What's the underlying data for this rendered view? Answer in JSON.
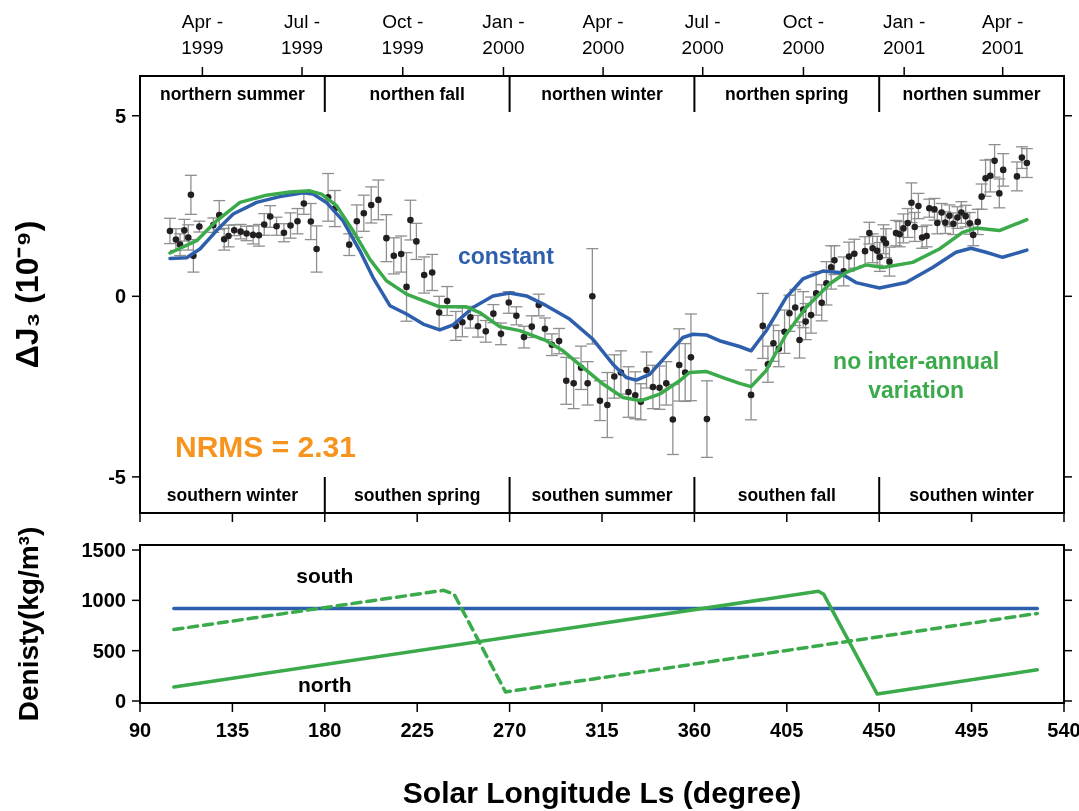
{
  "chart_data": [
    {
      "type": "line",
      "ylabel": "ΔJ₃ (10⁻⁹)",
      "xlim": [
        90,
        540
      ],
      "xticks": [
        {
          "value": 90,
          "label": null
        },
        {
          "value": 135,
          "label": null
        },
        {
          "value": 180,
          "label": null
        },
        {
          "value": 225,
          "label": null
        },
        {
          "value": 270,
          "label": null
        },
        {
          "value": 315,
          "label": null
        },
        {
          "value": 360,
          "label": null
        },
        {
          "value": 405,
          "label": null
        },
        {
          "value": 450,
          "label": null
        },
        {
          "value": 495,
          "label": null
        },
        {
          "value": 540,
          "label": null
        }
      ],
      "ylim": [
        -6,
        6.1
      ],
      "yticks": [
        -5,
        0,
        5
      ],
      "tick_labels": "y",
      "x2lim": [
        "1999-02-03",
        "2001-05-27"
      ],
      "x2ticks": [
        {
          "value": "1999-04-01",
          "label": "Apr -\n1999"
        },
        {
          "value": "1999-07-01",
          "label": "Jul -\n1999"
        },
        {
          "value": "1999-10-01",
          "label": "Oct -\n1999"
        },
        {
          "value": "2000-01-01",
          "label": "Jan -\n2000"
        },
        {
          "value": "2000-04-01",
          "label": "Apr -\n2000"
        },
        {
          "value": "2000-07-01",
          "label": "Jul -\n2000"
        },
        {
          "value": "2000-10-01",
          "label": "Oct -\n2000"
        },
        {
          "value": "2001-01-01",
          "label": "Jan -\n2001"
        },
        {
          "value": "2001-04-01",
          "label": "Apr -\n2001"
        }
      ],
      "grid": false,
      "legend": false,
      "annotations": [
        "NRMS = 2.31",
        "northern summer",
        "northen fall",
        "northen winter",
        "northen spring",
        "northen summer",
        "southern winter",
        "southen spring",
        "southen summer",
        "southen fall",
        "southen winter"
      ],
      "series": [
        {
          "type": "scatter",
          "color": "#231f20",
          "marker": "circle",
          "x": [
            104.6,
            107.5,
            109.5,
            111.6,
            113.5,
            114.8,
            116,
            118.9,
            125.7,
            128.6,
            131,
            133.1,
            135.9,
            139,
            141.9,
            145.1,
            147.9,
            150.5,
            153.4,
            156.5,
            160.1,
            163.3,
            166.7,
            169.8,
            173.2,
            176,
            181.6,
            184.9,
            191.9,
            195.6,
            199,
            202.6,
            206.1,
            210,
            213.6,
            217.2,
            219.8,
            221.7,
            224.6,
            228.4,
            232.3,
            235.7,
            239.6,
            243.8,
            247,
            250.9,
            254.6,
            258.4,
            262.1,
            265.8,
            269.6,
            273.3,
            277,
            280.8,
            284.2,
            287.2,
            290.6,
            294.1,
            297.6,
            301.2,
            304.8,
            308,
            310.3,
            314,
            317.6,
            321,
            324.2,
            327.9,
            331.2,
            333.9,
            336.7,
            339.8,
            343,
            346.3,
            349.5,
            352.6,
            355.5,
            358.3,
            366.1,
            387.6,
            393.3,
            395.8,
            398.5,
            401.1,
            403.9,
            406.3,
            409.1,
            411.2,
            413,
            414.2,
            416.8,
            419.3,
            422,
            424.3,
            426.6,
            428.2,
            432.7,
            435.3,
            437.9,
            443.1,
            445.2,
            446.8,
            449,
            450.3,
            452.1,
            453.3,
            455,
            458.2,
            460,
            461.8,
            463.9,
            465.7,
            467.3,
            469.1,
            470.9,
            473.1,
            474.4,
            476.9,
            478.3,
            480.4,
            482.2,
            484.2,
            486.1,
            488.1,
            490,
            492.1,
            494.1,
            495.8,
            498,
            499.9,
            501.8,
            504.1,
            506.2,
            508.5,
            510.4,
            517.1,
            519.5,
            521.9
          ],
          "values": [
            1.81,
            1.57,
            1.43,
            1.83,
            1.63,
            2.81,
            1.12,
            1.93,
            1.97,
            2.25,
            1.58,
            1.67,
            1.83,
            1.79,
            1.74,
            1.7,
            1.69,
            1.99,
            2.21,
            1.94,
            1.76,
            1.96,
            2.08,
            2.57,
            2.07,
            1.31,
            2.74,
            2.43,
            1.43,
            2.08,
            2.3,
            2.53,
            2.67,
            1.61,
            1.12,
            1.17,
            0.26,
            2.11,
            1.52,
            0.59,
            0.66,
            -0.45,
            -0.13,
            -0.82,
            -0.72,
            -0.58,
            -0.83,
            -0.97,
            -0.48,
            -1.04,
            -0.17,
            -0.54,
            -1.13,
            -0.84,
            -0.24,
            -0.9,
            -1.34,
            -1.24,
            -2.34,
            -2.41,
            -1.98,
            -2.41,
            0,
            -2.89,
            -3.01,
            -2.22,
            -2.11,
            -2.65,
            -2.74,
            -2.92,
            -2.04,
            -2.51,
            -2.53,
            -2.41,
            -3.41,
            -1.9,
            -2.11,
            -1.69,
            -3.4,
            -2.73,
            -0.82,
            -1.88,
            -1.3,
            -1.45,
            -0.98,
            -0.47,
            -0.31,
            -1.21,
            -0.37,
            -0.7,
            -0.52,
            0.08,
            -0.18,
            0.36,
            0.8,
            1,
            0.69,
            1.1,
            1.18,
            1.25,
            1.75,
            1.33,
            1.26,
            1.09,
            1.58,
            1.47,
            0.96,
            1.75,
            1.72,
            1.88,
            2.03,
            2.59,
            1.92,
            2.5,
            1.63,
            1.67,
            2.44,
            2.41,
            2.03,
            2.32,
            2.04,
            2.23,
            2.01,
            2.18,
            2.32,
            2.22,
            2.02,
            1.7,
            2.06,
            2.76,
            3.27,
            3.34,
            3.75,
            2.85,
            3.5,
            3.32,
            3.84,
            3.69
          ],
          "errors": [
            0.35,
            0.3,
            0.3,
            0.3,
            0.35,
            0.54,
            0.45,
            0.15,
            0.2,
            0.4,
            0.3,
            0.3,
            0.15,
            0.2,
            0.2,
            0.25,
            0.3,
            0.3,
            0.3,
            0.25,
            0.25,
            0.35,
            0.35,
            0.3,
            0.5,
            0.64,
            0.66,
            0.5,
            0.3,
            0.45,
            0.5,
            0.5,
            0.55,
            0.65,
            0.5,
            0.5,
            0.95,
            0.55,
            0.5,
            0.5,
            0.5,
            0.45,
            0.4,
            0.4,
            0.4,
            0.3,
            0.3,
            0.3,
            0.25,
            0.3,
            0.3,
            0.25,
            0.3,
            0.3,
            0.3,
            0.3,
            0.3,
            0.35,
            0.65,
            0.7,
            0.6,
            0.6,
            1.32,
            0.55,
            0.9,
            0.6,
            0.6,
            0.7,
            0.65,
            0.5,
            0.5,
            0.6,
            0.6,
            0.6,
            0.97,
            1.0,
            0.8,
            1.2,
            1.06,
            0.69,
            0.9,
            0.5,
            0.5,
            0.5,
            0.6,
            0.5,
            0.5,
            0.5,
            0.5,
            0.5,
            0.5,
            0.6,
            0.5,
            0.6,
            0.6,
            0.4,
            0.4,
            0.4,
            0.4,
            0.4,
            0.3,
            0.4,
            0.4,
            0.4,
            0.4,
            0.4,
            0.4,
            0.35,
            0.35,
            0.4,
            0.4,
            0.55,
            0.4,
            0.35,
            0.3,
            0.3,
            0.25,
            0.3,
            0.3,
            0.25,
            0.3,
            0.3,
            0.3,
            0.3,
            0.3,
            0.3,
            0.3,
            0.3,
            0.35,
            0.35,
            0.5,
            0.45,
            0.45,
            0.4,
            0.45,
            0.4,
            0.3,
            0.4
          ]
        },
        {
          "name": "constant",
          "color": "#2e5fac",
          "line_style": "solid",
          "x": [
            104.6,
            112.7,
            119.2,
            127.3,
            135.4,
            146.8,
            158.1,
            169.5,
            174.3,
            180.8,
            188.9,
            197.1,
            203.5,
            211.7,
            219.8,
            227.9,
            236,
            242.5,
            252.2,
            261.9,
            270,
            278.2,
            287.9,
            299.2,
            310.6,
            320.3,
            326.8,
            331.7,
            338.2,
            346.3,
            354.4,
            359.3,
            365.7,
            372.2,
            382,
            387.6,
            394.9,
            404.7,
            412.8,
            422.5,
            430.6,
            438.7,
            450.1,
            463.1,
            476,
            487.4,
            494.7,
            502,
            510.1,
            521.9
          ],
          "values": [
            1.05,
            1.07,
            1.31,
            1.82,
            2.28,
            2.6,
            2.76,
            2.87,
            2.83,
            2.6,
            2.09,
            1.26,
            0.52,
            -0.26,
            -0.49,
            -0.77,
            -0.93,
            -0.79,
            -0.31,
            0.01,
            0.09,
            0.01,
            -0.26,
            -0.63,
            -1.19,
            -1.88,
            -2.25,
            -2.32,
            -2.16,
            -1.65,
            -1.14,
            -1.05,
            -1.07,
            -1.23,
            -1.39,
            -1.51,
            -0.96,
            -0.03,
            0.48,
            0.7,
            0.66,
            0.38,
            0.23,
            0.38,
            0.8,
            1.22,
            1.33,
            1.22,
            1.08,
            1.28
          ]
        },
        {
          "name": "no inter-annual variation",
          "color": "#3aaa4a",
          "line_style": "solid",
          "x": [
            104.6,
            117.6,
            127.3,
            138.7,
            151.6,
            163,
            172.7,
            178.4,
            185.7,
            193.8,
            201.9,
            210,
            219.8,
            227.9,
            236,
            248.9,
            255.4,
            265.2,
            274.9,
            287.9,
            296,
            305.7,
            315.5,
            325.2,
            334.1,
            343,
            352.8,
            357.6,
            365.7,
            373.9,
            382,
            387.6,
            394.9,
            404.7,
            414.4,
            425.8,
            433.9,
            443.6,
            451.7,
            466.3,
            479.3,
            490.6,
            497.1,
            508.5,
            521.9
          ],
          "values": [
            1.2,
            1.54,
            2.09,
            2.6,
            2.8,
            2.89,
            2.92,
            2.83,
            2.51,
            1.81,
            1.03,
            0.43,
            0.06,
            -0.12,
            -0.29,
            -0.29,
            -0.45,
            -0.84,
            -0.95,
            -1.23,
            -1.51,
            -1.97,
            -2.43,
            -2.8,
            -2.89,
            -2.71,
            -2.34,
            -2.11,
            -2.08,
            -2.25,
            -2.41,
            -2.5,
            -2.06,
            -1.05,
            -0.31,
            0.34,
            0.66,
            0.87,
            0.8,
            0.94,
            1.31,
            1.77,
            1.89,
            1.82,
            2.12
          ]
        }
      ]
    },
    {
      "type": "line",
      "xlabel": "Solar Longitude Ls (degree)",
      "ylabel": "Denisty(kg/m³)",
      "xlim": [
        90,
        540
      ],
      "xticks": [
        90,
        135,
        180,
        225,
        270,
        315,
        360,
        405,
        450,
        495,
        540
      ],
      "ylim": [
        -20,
        1550
      ],
      "yticks": [
        0,
        500,
        1000,
        1500
      ],
      "grid": false,
      "legend": false,
      "series": [
        {
          "color": "#2e5fac",
          "line_style": "solid",
          "x": [
            106.5,
            527
          ],
          "values": [
            920,
            920
          ]
        },
        {
          "name": "north",
          "color": "#3aaa4a",
          "line_style": "solid",
          "x": [
            106.5,
            420.4,
            423,
            449,
            527
          ],
          "values": [
            140,
            1090,
            1060,
            70,
            310
          ]
        },
        {
          "name": "south",
          "color": "#3aaa4a",
          "line_style": "dashed",
          "x": [
            106.5,
            238,
            243,
            268,
            527
          ],
          "values": [
            710,
            1100,
            1060,
            90,
            870
          ]
        }
      ]
    }
  ]
}
